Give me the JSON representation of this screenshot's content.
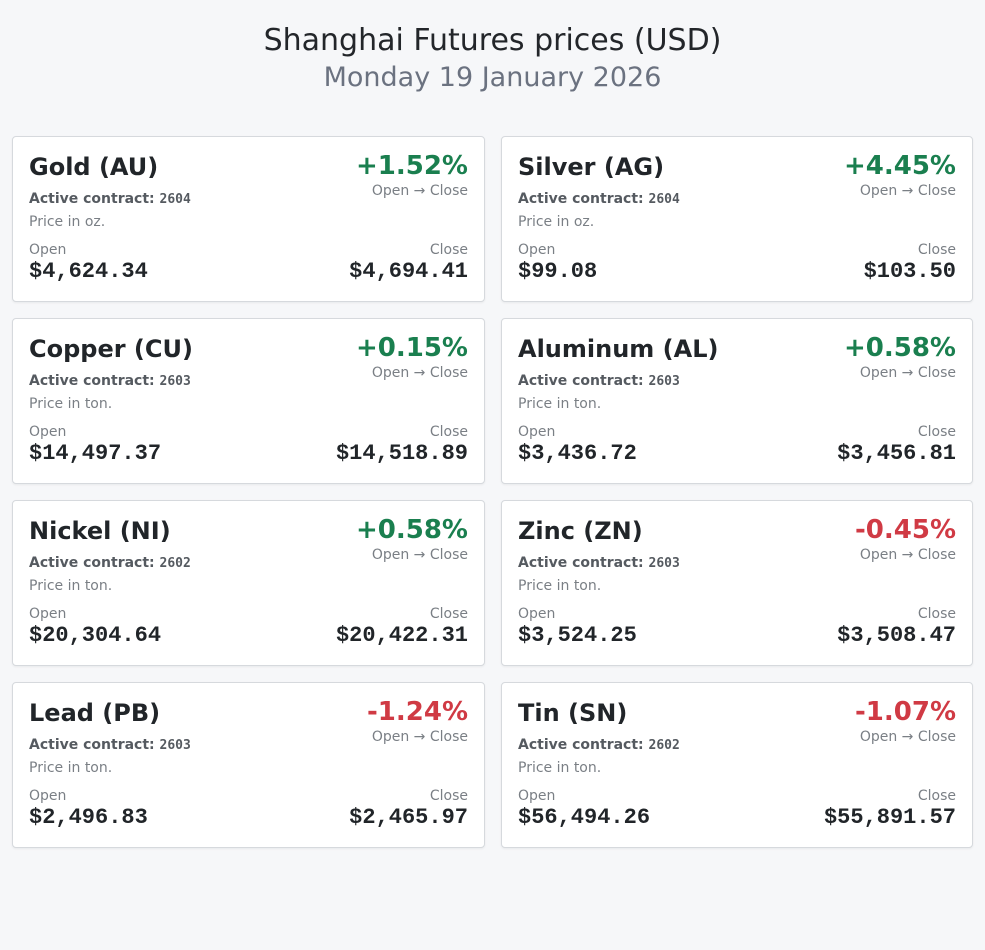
{
  "header": {
    "title": "Shanghai Futures prices (USD)",
    "subtitle": "Monday 19 January 2026"
  },
  "labels": {
    "active_contract": "Active contract:",
    "open_to_close": "Open → Close",
    "open": "Open",
    "close": "Close"
  },
  "colors": {
    "up": "#1a7f4f",
    "down": "#d03a44"
  },
  "cards": [
    {
      "name": "Gold (AU)",
      "change": "+1.52%",
      "direction": "up",
      "contract": "2604",
      "unit": "Price in oz.",
      "open": "$4,624.34",
      "close": "$4,694.41"
    },
    {
      "name": "Silver (AG)",
      "change": "+4.45%",
      "direction": "up",
      "contract": "2604",
      "unit": "Price in oz.",
      "open": "$99.08",
      "close": "$103.50"
    },
    {
      "name": "Copper (CU)",
      "change": "+0.15%",
      "direction": "up",
      "contract": "2603",
      "unit": "Price in ton.",
      "open": "$14,497.37",
      "close": "$14,518.89"
    },
    {
      "name": "Aluminum (AL)",
      "change": "+0.58%",
      "direction": "up",
      "contract": "2603",
      "unit": "Price in ton.",
      "open": "$3,436.72",
      "close": "$3,456.81"
    },
    {
      "name": "Nickel (NI)",
      "change": "+0.58%",
      "direction": "up",
      "contract": "2602",
      "unit": "Price in ton.",
      "open": "$20,304.64",
      "close": "$20,422.31"
    },
    {
      "name": "Zinc (ZN)",
      "change": "-0.45%",
      "direction": "down",
      "contract": "2603",
      "unit": "Price in ton.",
      "open": "$3,524.25",
      "close": "$3,508.47"
    },
    {
      "name": "Lead (PB)",
      "change": "-1.24%",
      "direction": "down",
      "contract": "2603",
      "unit": "Price in ton.",
      "open": "$2,496.83",
      "close": "$2,465.97"
    },
    {
      "name": "Tin (SN)",
      "change": "-1.07%",
      "direction": "down",
      "contract": "2602",
      "unit": "Price in ton.",
      "open": "$56,494.26",
      "close": "$55,891.57"
    }
  ]
}
